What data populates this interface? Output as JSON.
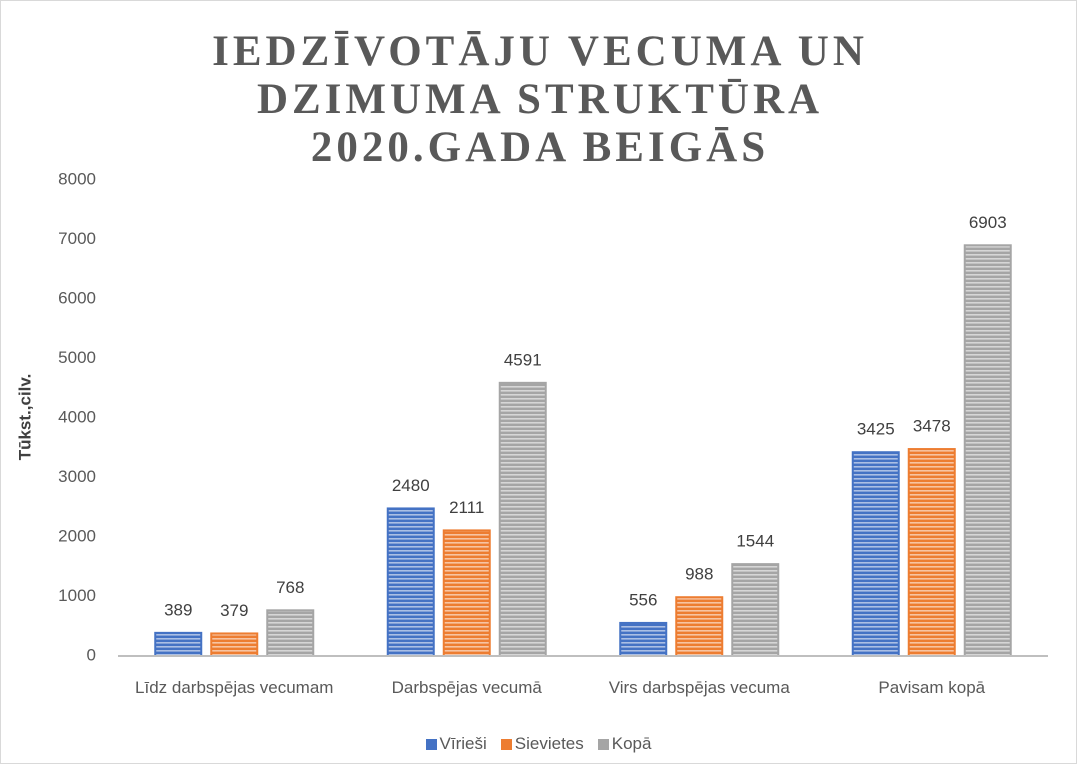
{
  "chart_data": {
    "type": "bar",
    "title": "IEDZĪVOTĀJU VECUMA UN DZIMUMA STRUKTŪRA 2020.GADA BEIGĀS",
    "y_label": "Tūkst.,cilv.",
    "categories": [
      "Līdz darbspējas vecumam",
      "Darbspējas vecumā",
      "Virs darbspējas vecuma",
      "Pavisam kopā"
    ],
    "series": [
      {
        "name": "Vīrieši",
        "color": "#4472c4",
        "values": [
          389,
          2480,
          556,
          3425
        ]
      },
      {
        "name": "Sievietes",
        "color": "#ed7d31",
        "values": [
          379,
          2111,
          988,
          3478
        ]
      },
      {
        "name": "Kopā",
        "color": "#a5a5a5",
        "values": [
          768,
          4591,
          1544,
          6903
        ]
      }
    ],
    "ylim": [
      0,
      8000
    ],
    "yticks": [
      0,
      1000,
      2000,
      3000,
      4000,
      5000,
      6000,
      7000,
      8000
    ],
    "grid": false
  }
}
